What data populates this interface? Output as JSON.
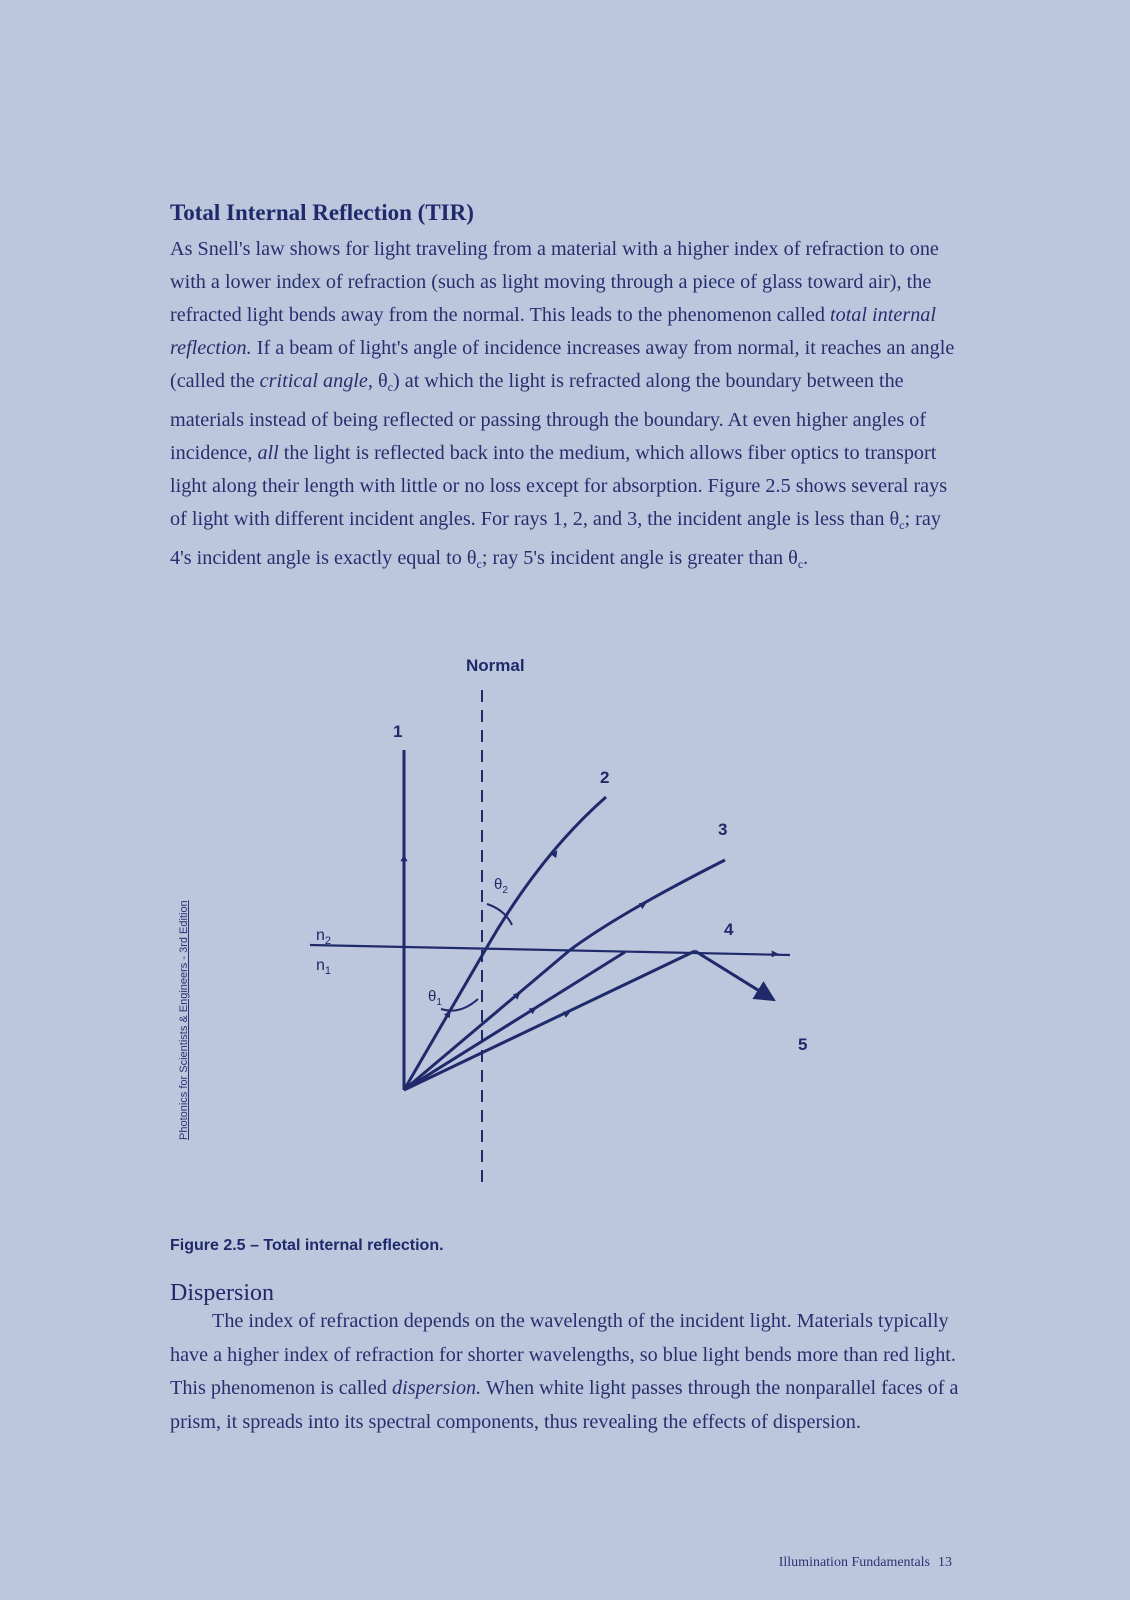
{
  "sections": {
    "tir": {
      "heading": "Total Internal Reflection (TIR)",
      "paragraph": {
        "t1": "As Snell's law shows for light traveling from a material with a higher index of refraction to one with a lower index of refraction (such as light moving through a piece of glass toward air), the refracted light bends away from the normal. This leads to the phenomenon called ",
        "em1": "total internal reflection.",
        "t2": " If a beam of light's angle of incidence increases away from normal, it reaches an angle (called the ",
        "em2": "critical angle,",
        "t3": " θ",
        "sub1": "c",
        "t4": ") at which the light is refracted along the boundary between the materials instead of being reflected or passing through the boundary. At even higher angles of incidence, ",
        "em3": "all",
        "t5": " the light is reflected back into the medium, which allows fiber optics to transport light along their length with little or no loss except for absorption. Figure 2.5 shows several rays of light with different incident angles. For rays 1, 2, and 3, the incident angle is less than θ",
        "sub2": "c",
        "t6": "; ray 4's incident angle is exactly equal to θ",
        "sub3": "c",
        "t7": "; ray 5's incident angle is greater than θ",
        "sub4": "c",
        "t8": "."
      }
    },
    "dispersion": {
      "heading": "Dispersion",
      "paragraph": {
        "t1": "The index of refraction depends on the wavelength of the incident light. Materials typically have a higher index of refraction for shorter wavelengths, so blue light bends more than red light. This phenomenon is called ",
        "em1": "dispersion.",
        "t2": " When white light passes through the nonparallel faces of a prism, it spreads into its spectral components, thus revealing the effects of dispersion."
      }
    }
  },
  "figure": {
    "normal_label": "Normal",
    "ray_labels": [
      "1",
      "2",
      "3",
      "4",
      "5"
    ],
    "medium_top": "n",
    "medium_top_sub": "2",
    "medium_bottom": "n",
    "medium_bottom_sub": "1",
    "theta_refracted": "θ",
    "theta_refracted_sub": "2",
    "theta_incident": "θ",
    "theta_incident_sub": "1",
    "caption": "Figure 2.5 – Total internal reflection.",
    "line_color": "#1f2a6b"
  },
  "sidebar_credit": "Photonics for Scientists & Engineers - 3rd Edition",
  "footer": {
    "text": "Illumination Fundamentals",
    "page_number": "13"
  }
}
